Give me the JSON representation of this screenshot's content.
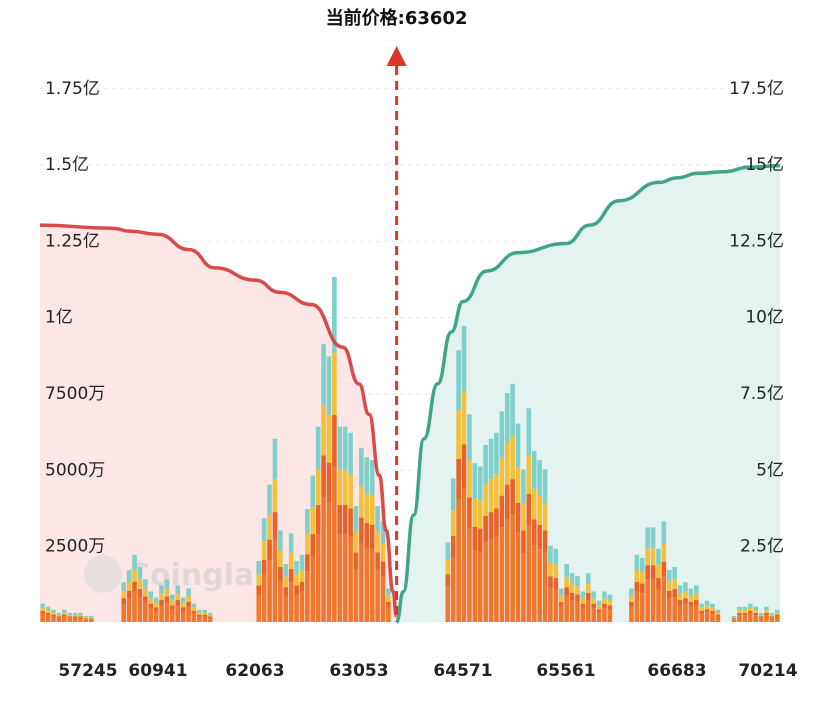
{
  "chart_data": {
    "type": "bar",
    "title": "",
    "current_price_label": "当前价格:63602",
    "current_price": 63602,
    "watermark": "Coinglass",
    "left_axis": {
      "ticks": [
        "1.75亿",
        "1.5亿",
        "1.25亿",
        "1亿",
        "7500万",
        "5000万",
        "2500万"
      ],
      "values": [
        175000000,
        150000000,
        125000000,
        100000000,
        75000000,
        50000000,
        25000000
      ],
      "range": [
        0,
        190000000
      ]
    },
    "right_axis": {
      "ticks": [
        "17.5亿",
        "15亿",
        "12.5亿",
        "10亿",
        "7.5亿",
        "5亿",
        "2.5亿"
      ],
      "values": [
        1750000000,
        1500000000,
        1250000000,
        1000000000,
        750000000,
        500000000,
        250000000
      ],
      "range": [
        0,
        1900000000
      ]
    },
    "x_ticks": [
      "57245",
      "60941",
      "62063",
      "63053",
      "64571",
      "65561",
      "66683",
      "70214"
    ],
    "grid": true,
    "colors": {
      "bar_teal": "#7fcfca",
      "bar_yellow": "#f2c03c",
      "bar_orange": "#f0772e",
      "bar_deep_orange": "#e8622a",
      "left_line": "#d94b4b",
      "left_fill": "#fbe3e2",
      "right_line": "#3fa58a",
      "right_fill": "#e2f2ee",
      "price_line": "#e0352b"
    },
    "bars_total_left_scale": [
      6,
      5,
      4,
      3,
      4,
      3,
      3,
      3,
      2,
      2,
      0,
      0,
      0,
      0,
      0,
      13,
      17,
      22,
      18,
      14,
      10,
      8,
      12,
      14,
      9,
      12,
      8,
      11,
      6,
      4,
      4,
      3,
      0,
      0,
      0,
      0,
      0,
      0,
      0,
      0,
      20,
      34,
      45,
      60,
      30,
      19,
      29,
      20,
      22,
      37,
      48,
      64,
      91,
      87,
      113,
      64,
      64,
      62,
      38,
      57,
      54,
      53,
      38,
      33,
      11,
      0,
      0,
      0,
      0,
      0,
      0,
      0,
      0,
      0,
      0,
      26,
      47,
      89,
      97,
      68,
      52,
      51,
      58,
      60,
      62,
      69,
      75,
      78,
      65,
      50,
      70,
      56,
      53,
      50,
      25,
      24,
      11,
      19,
      16,
      15,
      10,
      16,
      10,
      7,
      10,
      9,
      0,
      0,
      0,
      11,
      22,
      21,
      31,
      31,
      24,
      33,
      17,
      18,
      12,
      13,
      11,
      12,
      6,
      7,
      6,
      4,
      0,
      0,
      2,
      5,
      5,
      6,
      5,
      3,
      5,
      3,
      4
    ],
    "cumulative_left_scale_short": [
      [
        57245,
        130000000
      ],
      [
        58500,
        129000000
      ],
      [
        59500,
        128000000
      ],
      [
        60941,
        127000000
      ],
      [
        61300,
        122000000
      ],
      [
        61600,
        116000000
      ],
      [
        62063,
        112000000
      ],
      [
        62300,
        108000000
      ],
      [
        62600,
        104000000
      ],
      [
        62900,
        90000000
      ],
      [
        63053,
        78000000
      ],
      [
        63200,
        68000000
      ],
      [
        63350,
        48000000
      ],
      [
        63450,
        30000000
      ],
      [
        63550,
        10000000
      ],
      [
        63600,
        2000000
      ]
    ],
    "cumulative_right_scale_long": [
      [
        63602,
        0
      ],
      [
        63700,
        100000000
      ],
      [
        63850,
        350000000
      ],
      [
        64000,
        600000000
      ],
      [
        64200,
        780000000
      ],
      [
        64400,
        950000000
      ],
      [
        64571,
        1050000000
      ],
      [
        64800,
        1150000000
      ],
      [
        65100,
        1210000000
      ],
      [
        65561,
        1240000000
      ],
      [
        65800,
        1300000000
      ],
      [
        66100,
        1380000000
      ],
      [
        66500,
        1440000000
      ],
      [
        66683,
        1455000000
      ],
      [
        67500,
        1470000000
      ],
      [
        68500,
        1475000000
      ],
      [
        69500,
        1490000000
      ],
      [
        70214,
        1495000000
      ]
    ]
  }
}
